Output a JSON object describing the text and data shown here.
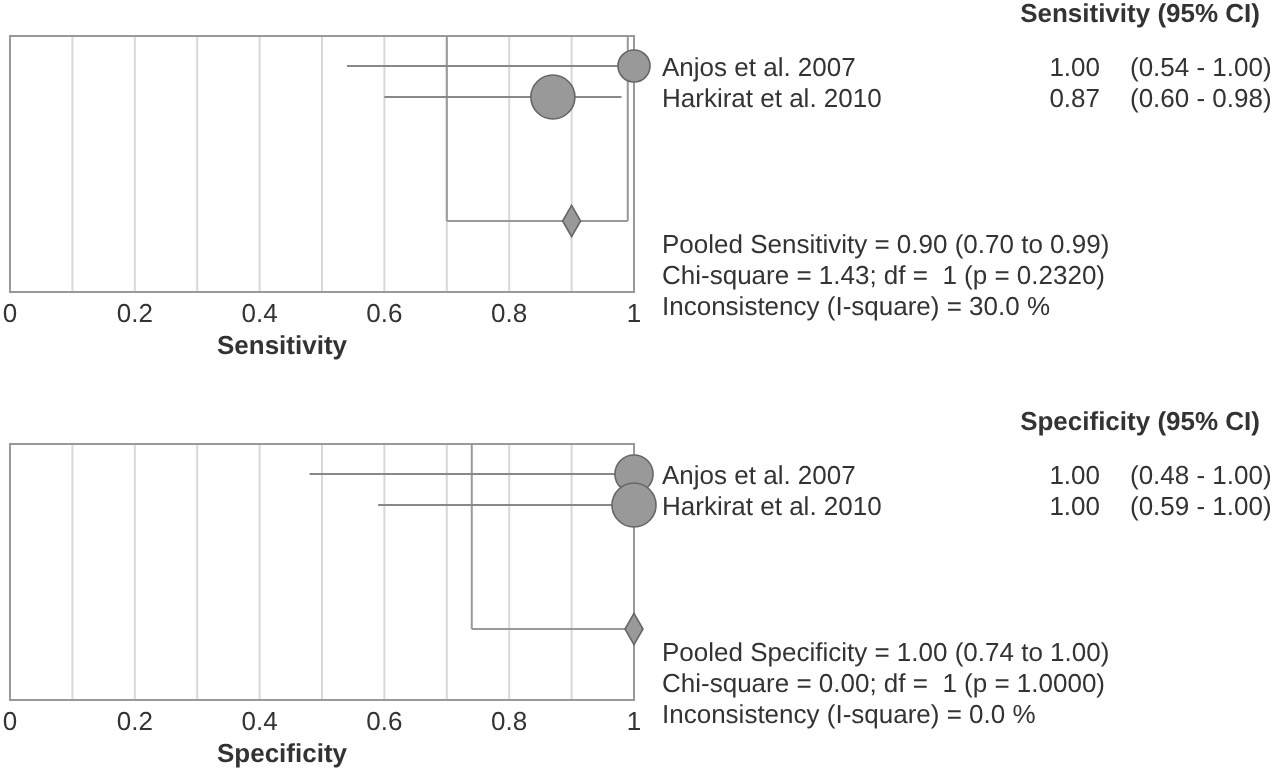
{
  "chart_data": [
    {
      "type": "bubble",
      "orientation": "horizontal",
      "xlabel": "Sensitivity",
      "categories": [
        "Anjos et al. 2007",
        "Harkirat et al. 2010",
        null,
        null,
        null,
        null
      ],
      "xlim": [
        0,
        1
      ],
      "xticks": [
        0,
        {
          "value": 0.1,
          "label": null
        },
        0.2,
        {
          "value": 0.3,
          "label": null
        },
        0.4,
        {
          "value": 0.5,
          "label": null
        },
        0.6,
        {
          "value": 0.7,
          "label": null
        },
        0.8,
        {
          "value": 0.9,
          "label": null
        },
        1
      ],
      "grid": "x",
      "series": [
        {
          "color": "#999999",
          "values": [
            1.0,
            0.87,
            null,
            null,
            null,
            null
          ],
          "sizes": [
            0.53,
            1,
            null,
            null,
            null,
            null
          ],
          "errors": [
            [
              0.54,
              1.0
            ],
            [
              0.6,
              0.98
            ],
            null,
            null,
            null,
            null
          ],
          "value_labels": [
            "1.00  (0.54 - 1.00)",
            "0.87  (0.60 - 0.98)",
            null,
            null,
            null,
            null
          ]
        },
        {
          "type": "scatter",
          "marker": "diamond",
          "color": "#999999",
          "values": [
            null,
            null,
            null,
            null,
            null,
            0.9
          ],
          "errors": [
            null,
            null,
            null,
            null,
            null,
            [
              0.7,
              0.99
            ]
          ]
        }
      ],
      "ref_lines": [
        {
          "axis": "x",
          "value": 0.7,
          "color": "#999999"
        },
        {
          "axis": "x",
          "value": 0.99,
          "color": "#999999"
        }
      ],
      "annotations": [
        "Sensitivity (95% CI)",
        "Pooled Sensitivity = 0.90 (0.70 to 0.99)",
        "Chi-square = 1.43; df =  1 (p = 0.2320)",
        "Inconsistency (I-square) = 30.0 %"
      ]
    },
    {
      "type": "bubble",
      "orientation": "horizontal",
      "xlabel": "Specificity",
      "categories": [
        "Anjos et al. 2007",
        "Harkirat et al. 2010",
        null,
        null,
        null,
        null
      ],
      "xlim": [
        0,
        1
      ],
      "xticks": [
        0,
        {
          "value": 0.1,
          "label": null
        },
        0.2,
        {
          "value": 0.3,
          "label": null
        },
        0.4,
        {
          "value": 0.5,
          "label": null
        },
        0.6,
        {
          "value": 0.7,
          "label": null
        },
        0.8,
        {
          "value": 0.9,
          "label": null
        },
        1
      ],
      "grid": "x",
      "series": [
        {
          "color": "#999999",
          "values": [
            1.0,
            1.0,
            null,
            null,
            null,
            null
          ],
          "sizes": [
            0.75,
            1,
            null,
            null,
            null,
            null
          ],
          "errors": [
            [
              0.48,
              1.0
            ],
            [
              0.59,
              1.0
            ],
            null,
            null,
            null,
            null
          ],
          "value_labels": [
            "1.00  (0.48 - 1.00)",
            "1.00  (0.59 - 1.00)",
            null,
            null,
            null,
            null
          ]
        },
        {
          "type": "scatter",
          "marker": "diamond",
          "color": "#999999",
          "values": [
            null,
            null,
            null,
            null,
            null,
            1.0
          ],
          "errors": [
            null,
            null,
            null,
            null,
            null,
            [
              0.74,
              1.0
            ]
          ]
        }
      ],
      "ref_lines": [
        {
          "axis": "x",
          "value": 0.74,
          "color": "#999999"
        }
      ],
      "annotations": [
        "Specificity (95% CI)",
        "Pooled Specificity = 1.00 (0.74 to 1.00)",
        "Chi-square = 0.00; df =  1 (p = 1.0000)",
        "Inconsistency (I-square) = 0.0 %"
      ]
    }
  ]
}
